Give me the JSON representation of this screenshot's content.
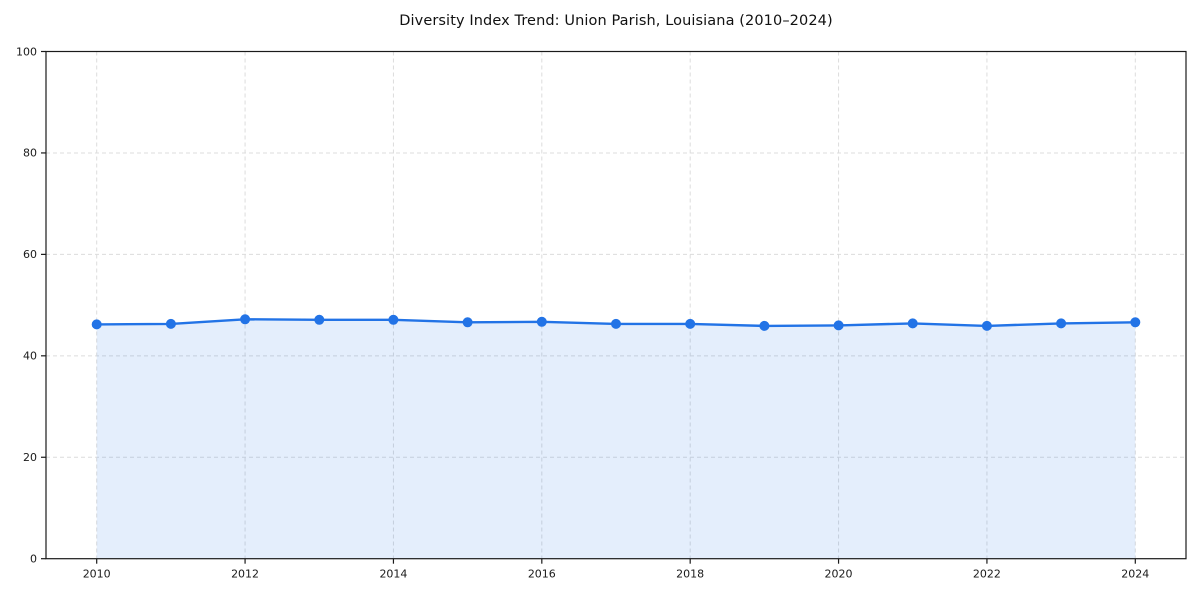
{
  "page": {
    "background": "#ffffff"
  },
  "chart_data": {
    "type": "line",
    "title": "Diversity Index Trend: Union Parish, Louisiana (2010–2024)",
    "x": [
      2010,
      2011,
      2012,
      2013,
      2014,
      2015,
      2016,
      2017,
      2018,
      2019,
      2020,
      2021,
      2022,
      2023,
      2024
    ],
    "series": [
      {
        "name": "Diversity Index",
        "values": [
          46.2,
          46.3,
          47.2,
          47.1,
          47.1,
          46.6,
          46.7,
          46.3,
          46.3,
          45.9,
          46.0,
          46.4,
          45.9,
          46.4,
          46.6
        ]
      }
    ],
    "xlabel": "",
    "ylabel": "",
    "ylim": [
      0,
      100
    ],
    "yticks": [
      0,
      20,
      40,
      60,
      80,
      100
    ],
    "xticks": [
      2010,
      2012,
      2014,
      2016,
      2018,
      2020,
      2022,
      2024
    ],
    "grid": "dashed",
    "legend_position": "none",
    "area_fill": true,
    "marker": "circle",
    "colors": {
      "line": "#2273e6",
      "marker": "#2273e6",
      "fill": "rgba(34, 115, 230, 0.12)",
      "grid": "#dcdcdc",
      "spine": "#1a1a1a",
      "tick_label": "#1a1a1a",
      "title": "#111111",
      "background": "#ffffff"
    }
  }
}
